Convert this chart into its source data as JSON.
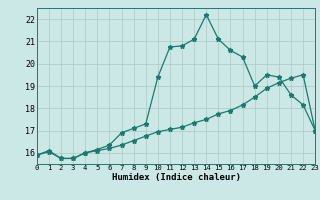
{
  "xlabel": "Humidex (Indice chaleur)",
  "x_values": [
    0,
    1,
    2,
    3,
    4,
    5,
    6,
    7,
    8,
    9,
    10,
    11,
    12,
    13,
    14,
    15,
    16,
    17,
    18,
    19,
    20,
    21,
    22,
    23
  ],
  "line1": [
    15.9,
    16.1,
    15.75,
    15.75,
    16.0,
    16.15,
    16.35,
    16.9,
    17.1,
    17.3,
    19.4,
    20.75,
    20.8,
    21.1,
    22.2,
    21.1,
    20.6,
    20.3,
    19.0,
    19.5,
    19.4,
    18.6,
    18.15,
    17.0
  ],
  "line2": [
    15.9,
    16.05,
    15.75,
    15.75,
    16.0,
    16.1,
    16.2,
    16.35,
    16.55,
    16.75,
    16.95,
    17.05,
    17.15,
    17.35,
    17.5,
    17.75,
    17.9,
    18.15,
    18.5,
    18.9,
    19.15,
    19.35,
    19.5,
    17.0
  ],
  "xlim": [
    0,
    23
  ],
  "ylim": [
    15.5,
    22.5
  ],
  "yticks": [
    16,
    17,
    18,
    19,
    20,
    21,
    22
  ],
  "xticks": [
    0,
    1,
    2,
    3,
    4,
    5,
    6,
    7,
    8,
    9,
    10,
    11,
    12,
    13,
    14,
    15,
    16,
    17,
    18,
    19,
    20,
    21,
    22,
    23
  ],
  "line_color": "#1a7a6e",
  "bg_color": "#cce8e6",
  "grid_color_major": "#aac8c4",
  "grid_color_minor": "#c4dedd",
  "marker": "*",
  "marker_size": 3.5,
  "line_width": 0.9
}
